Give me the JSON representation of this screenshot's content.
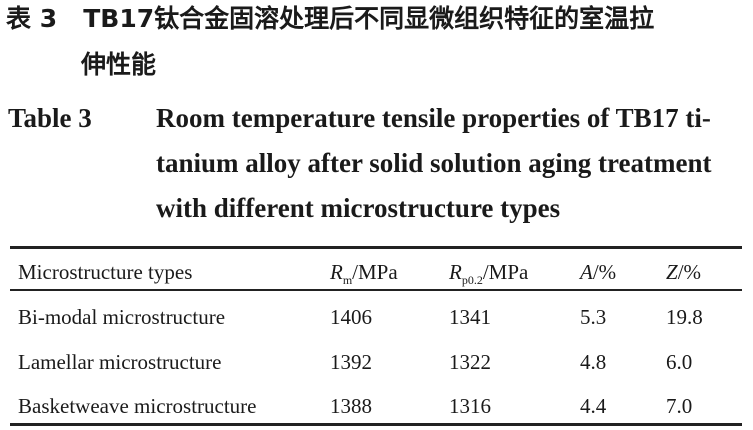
{
  "caption_cn": {
    "label": "表 3",
    "line1": "TB17钛合金固溶处理后不同显微组织特征的室温拉",
    "line2": "伸性能"
  },
  "caption_en": {
    "label": "Table 3",
    "line1": "Room temperature tensile properties of TB17 ti-",
    "line2": "tanium alloy after solid solution aging treatment",
    "line3": "with different microstructure types"
  },
  "table": {
    "headers": [
      {
        "text": "Microstructure types"
      },
      {
        "sym": "R",
        "sub": "m",
        "unit": "/MPa"
      },
      {
        "sym": "R",
        "sub": "p0.2",
        "unit": "/MPa"
      },
      {
        "sym": "A",
        "unit": "/%"
      },
      {
        "sym": "Z",
        "unit": "/%"
      }
    ],
    "rows": [
      [
        "Bi-modal microstructure",
        "1406",
        "1341",
        "5.3",
        "19.8"
      ],
      [
        "Lamellar microstructure",
        "1392",
        "1322",
        "4.8",
        "6.0"
      ],
      [
        "Basketweave microstructure",
        "1388",
        "1316",
        "4.4",
        "7.0"
      ]
    ]
  }
}
